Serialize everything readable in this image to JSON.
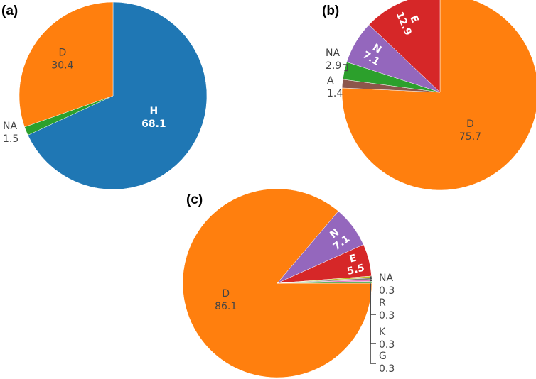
{
  "chart_data": [
    {
      "type": "pie",
      "panel_label": "(a)",
      "slices": [
        {
          "label": "H",
          "value": 68.1,
          "color": "#1f77b4",
          "text_color": "#ffffff",
          "bold": true
        },
        {
          "label": "NA",
          "value": 1.5,
          "color": "#2ca02c",
          "text_color": "#444444",
          "bold": false
        },
        {
          "label": "D",
          "value": 30.4,
          "color": "#ff7f0e",
          "text_color": "#444444",
          "bold": false
        }
      ]
    },
    {
      "type": "pie",
      "panel_label": "(b)",
      "slices": [
        {
          "label": "D",
          "value": 75.7,
          "color": "#ff7f0e",
          "text_color": "#444444",
          "bold": false
        },
        {
          "label": "A",
          "value": 1.4,
          "color": "#8c564b",
          "text_color": "#444444",
          "bold": false
        },
        {
          "label": "NA",
          "value": 2.9,
          "color": "#2ca02c",
          "text_color": "#444444",
          "bold": false
        },
        {
          "label": "N",
          "value": 7.1,
          "color": "#9467bd",
          "text_color": "#ffffff",
          "bold": true
        },
        {
          "label": "E",
          "value": 12.9,
          "color": "#d62728",
          "text_color": "#ffffff",
          "bold": true
        }
      ]
    },
    {
      "type": "pie",
      "panel_label": "(c)",
      "slices": [
        {
          "label": "D",
          "value": 86.1,
          "color": "#ff7f0e",
          "text_color": "#444444",
          "bold": false
        },
        {
          "label": "N",
          "value": 7.1,
          "color": "#9467bd",
          "text_color": "#ffffff",
          "bold": true
        },
        {
          "label": "E",
          "value": 5.5,
          "color": "#d62728",
          "text_color": "#ffffff",
          "bold": true
        },
        {
          "label": "G",
          "value": 0.3,
          "color": "#bcbd22",
          "text_color": "#444444",
          "bold": false
        },
        {
          "label": "K",
          "value": 0.3,
          "color": "#7f7f7f",
          "text_color": "#444444",
          "bold": false
        },
        {
          "label": "R",
          "value": 0.3,
          "color": "#e377c2",
          "text_color": "#444444",
          "bold": false
        },
        {
          "label": "NA",
          "value": 0.3,
          "color": "#2ca02c",
          "text_color": "#444444",
          "bold": false
        }
      ]
    }
  ]
}
